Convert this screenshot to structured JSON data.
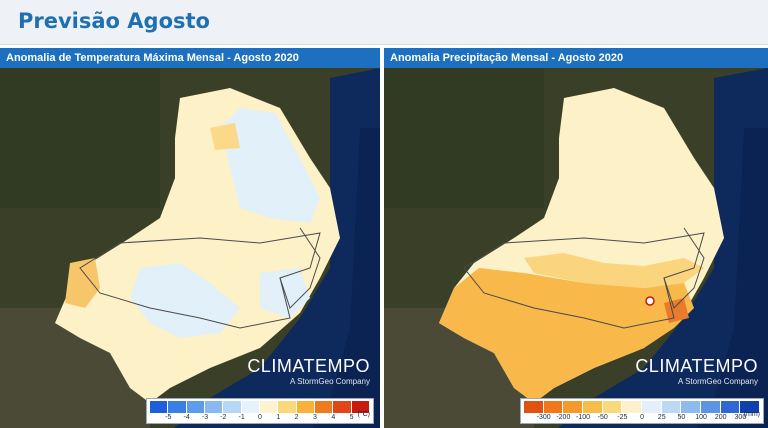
{
  "header": {
    "title": "Previsão Agosto"
  },
  "panels": [
    {
      "title": "Anomalia de Temperatura Máxima Mensal - Agosto 2020",
      "logo": {
        "brand": "CLIMATEMPO",
        "sub": "A StormGeo Company"
      },
      "legend": {
        "unit": "(°C)",
        "labels": [
          "-5",
          "-4",
          "-3",
          "-2",
          "-1",
          "0",
          "1",
          "2",
          "3",
          "4",
          "5"
        ],
        "colors": [
          "#1c5fd8",
          "#3a7fe4",
          "#5c9ceb",
          "#8ab8f0",
          "#b8d7f6",
          "#e6f2fb",
          "#fdf3cc",
          "#fbd87a",
          "#f9b13a",
          "#f27a1e",
          "#e04616",
          "#c81a10"
        ]
      }
    },
    {
      "title": "Anomalia Precipitação Mensal - Agosto 2020",
      "logo": {
        "brand": "CLIMATEMPO",
        "sub": "A StormGeo Company"
      },
      "legend": {
        "unit": "(mm)",
        "labels": [
          "-300",
          "-200",
          "-100",
          "-50",
          "-25",
          "0",
          "25",
          "50",
          "100",
          "200",
          "300"
        ],
        "colors": [
          "#e0520f",
          "#f0771a",
          "#f59a2a",
          "#f8bc48",
          "#fad87c",
          "#fdf1cc",
          "#e3effa",
          "#bcd8f4",
          "#8ebbef",
          "#5d94e6",
          "#2f67d6",
          "#123fae"
        ]
      }
    }
  ]
}
